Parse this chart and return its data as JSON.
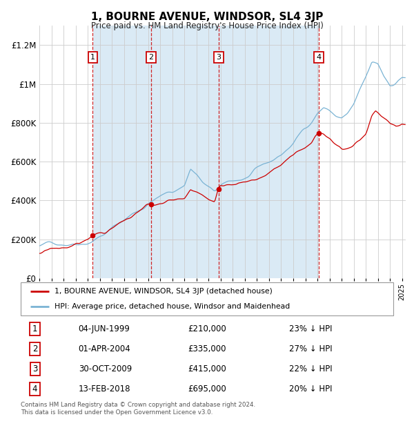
{
  "title": "1, BOURNE AVENUE, WINDSOR, SL4 3JP",
  "subtitle": "Price paid vs. HM Land Registry's House Price Index (HPI)",
  "hpi_label": "HPI: Average price, detached house, Windsor and Maidenhead",
  "property_label": "1, BOURNE AVENUE, WINDSOR, SL4 3JP (detached house)",
  "hpi_color": "#7ab3d4",
  "property_color": "#cc0000",
  "shade_color": "#daeaf5",
  "grid_color": "#cccccc",
  "transactions": [
    {
      "num": 1,
      "date": "1999-06-04",
      "price": 210000,
      "pct": "23%",
      "x_year": 1999.42
    },
    {
      "num": 2,
      "date": "2004-04-01",
      "price": 335000,
      "pct": "27%",
      "x_year": 2004.25
    },
    {
      "num": 3,
      "date": "2009-10-30",
      "price": 415000,
      "pct": "22%",
      "x_year": 2009.83
    },
    {
      "num": 4,
      "date": "2018-02-13",
      "price": 695000,
      "pct": "20%",
      "x_year": 2018.12
    }
  ],
  "table_rows": [
    [
      1,
      "04-JUN-1999",
      "£210,000",
      "23% ↓ HPI"
    ],
    [
      2,
      "01-APR-2004",
      "£335,000",
      "27% ↓ HPI"
    ],
    [
      3,
      "30-OCT-2009",
      "£415,000",
      "22% ↓ HPI"
    ],
    [
      4,
      "13-FEB-2018",
      "£695,000",
      "20% ↓ HPI"
    ]
  ],
  "footnote1": "Contains HM Land Registry data © Crown copyright and database right 2024.",
  "footnote2": "This data is licensed under the Open Government Licence v3.0.",
  "xmin": 1995.0,
  "xmax": 2025.3,
  "ymin": 0,
  "ymax": 1300000,
  "yticks": [
    0,
    200000,
    400000,
    600000,
    800000,
    1000000,
    1200000
  ],
  "ytick_labels": [
    "£0",
    "£200K",
    "£400K",
    "£600K",
    "£800K",
    "£1M",
    "£1.2M"
  ]
}
